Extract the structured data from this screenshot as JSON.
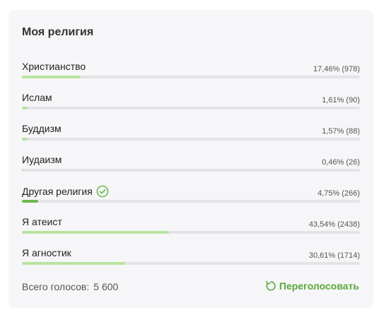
{
  "poll": {
    "title": "Моя религия",
    "options": [
      {
        "label": "Христианство",
        "value": "17,46% (978)",
        "percent": 17.46,
        "selected": false
      },
      {
        "label": "Ислам",
        "value": "1,61% (90)",
        "percent": 1.61,
        "selected": false
      },
      {
        "label": "Буддизм",
        "value": "1,57% (88)",
        "percent": 1.57,
        "selected": false
      },
      {
        "label": "Иудаизм",
        "value": "0,46% (26)",
        "percent": 0.46,
        "selected": false
      },
      {
        "label": "Другая религия",
        "value": "4,75% (266)",
        "percent": 4.75,
        "selected": true
      },
      {
        "label": "Я атеист",
        "value": "43,54% (2438)",
        "percent": 43.54,
        "selected": false
      },
      {
        "label": "Я агностик",
        "value": "30,61% (1714)",
        "percent": 30.61,
        "selected": false
      }
    ],
    "total_label": "Всего голосов:",
    "total_value": "5 600",
    "revote_label": "Переголосовать",
    "icons": {
      "selected": "check-circle-icon",
      "revote": "refresh-icon"
    },
    "colors": {
      "bar": "#b9e3a0",
      "bar_selected": "#6bb84a",
      "accent": "#5aa83b"
    }
  }
}
